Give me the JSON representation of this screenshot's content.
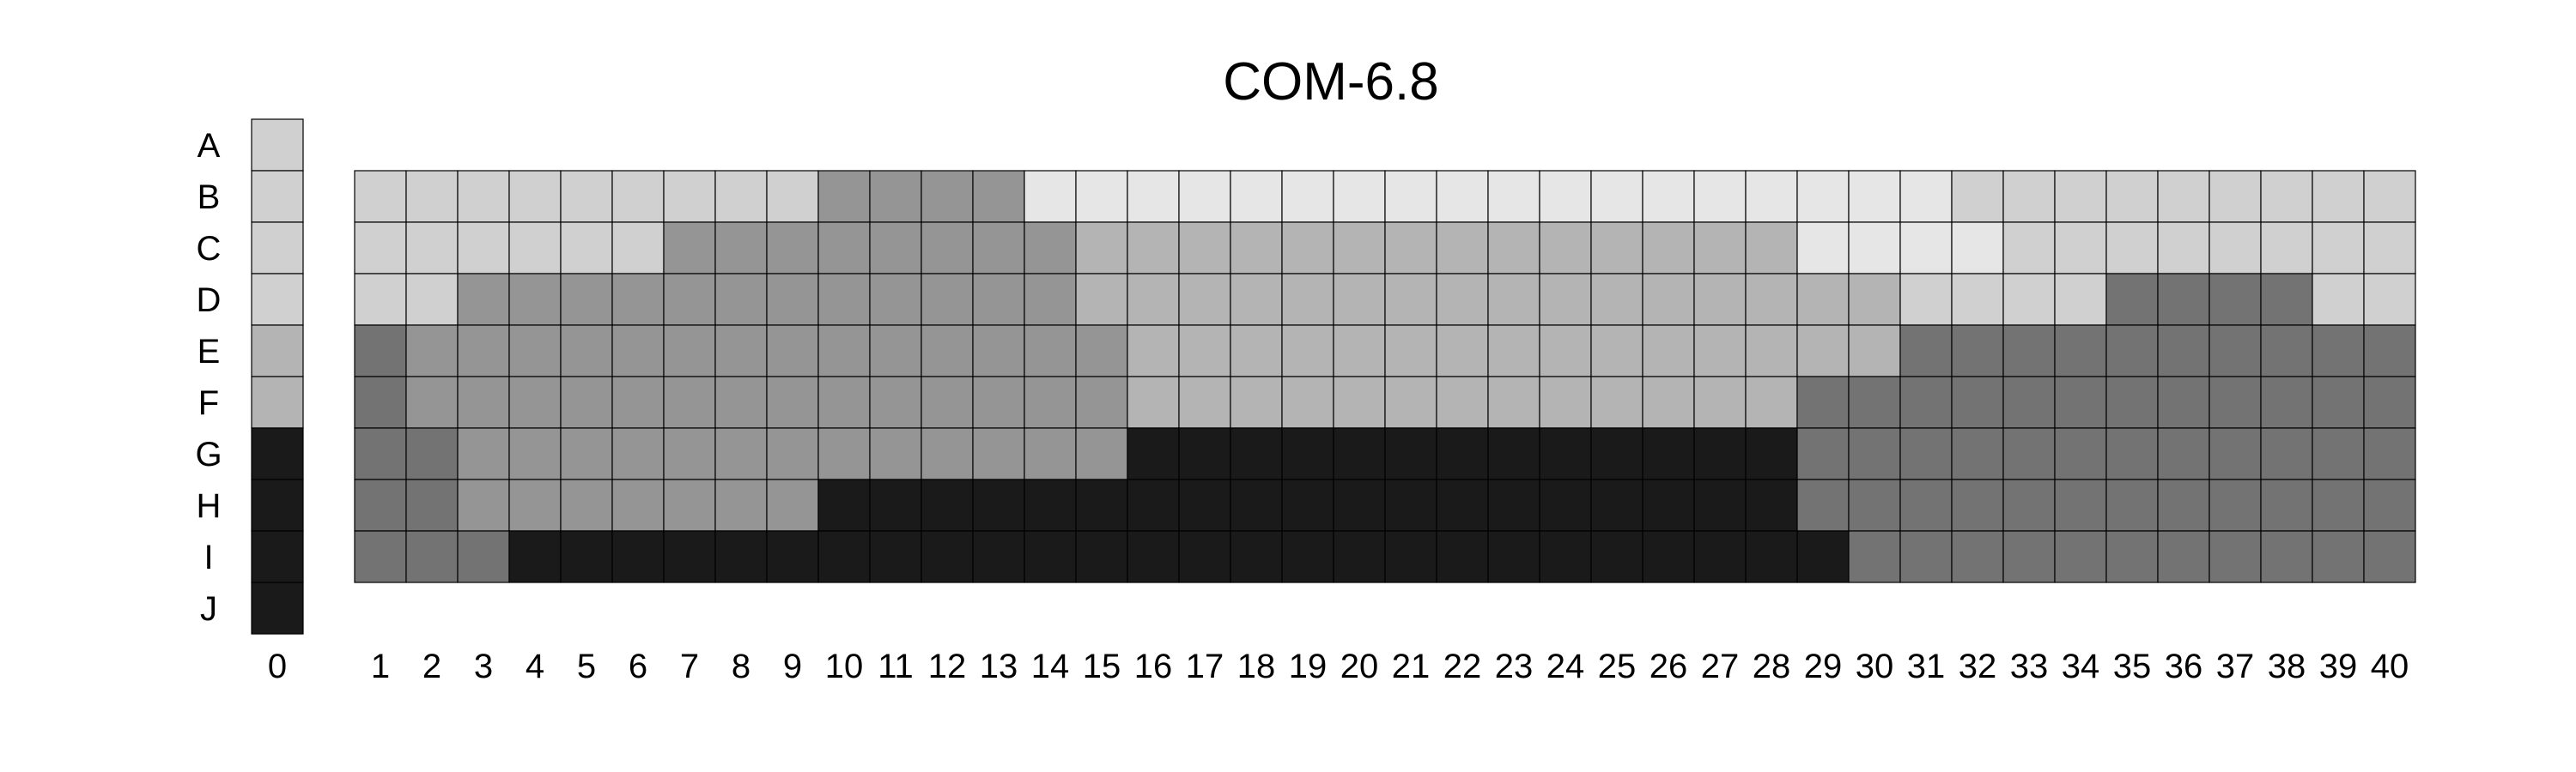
{
  "chart_data": {
    "type": "heatmap",
    "title": "COM-6.8",
    "row_labels": [
      "A",
      "B",
      "C",
      "D",
      "E",
      "F",
      "G",
      "H",
      "I",
      "J"
    ],
    "column_labels": [
      "0",
      "1",
      "2",
      "3",
      "4",
      "5",
      "6",
      "7",
      "8",
      "9",
      "10",
      "11",
      "12",
      "13",
      "14",
      "15",
      "16",
      "17",
      "18",
      "19",
      "20",
      "21",
      "22",
      "23",
      "24",
      "25",
      "26",
      "27",
      "28",
      "29",
      "30",
      "31",
      "32",
      "33",
      "34",
      "35",
      "36",
      "37",
      "38",
      "39",
      "40"
    ],
    "palette": {
      "1": "#e6e6e6",
      "2": "#d0d0d0",
      "3": "#b4b4b4",
      "4": "#959595",
      "5": "#737373",
      "6": "#1a1a1a"
    },
    "reference_column": [
      "2",
      "2",
      "2",
      "2",
      "3",
      "3",
      "6",
      "6",
      "6",
      "6"
    ],
    "grid_rows": [
      "B",
      "C",
      "D",
      "E",
      "F",
      "G",
      "H",
      "I"
    ],
    "grid": [
      "2222222224444111111111111111111222222222",
      "2222224444444433333333333333111122222222",
      "2244444444444433333333333333332222555522",
      "5444444444444443333333333333335555555555",
      "5444444444444443333333333333555555555555",
      "5544444444444446666666666666555555555555",
      "5544444446666666666666666666555555555555",
      "5556666666666666666666666666655555555555"
    ],
    "grid_on": true,
    "legend": "none"
  }
}
